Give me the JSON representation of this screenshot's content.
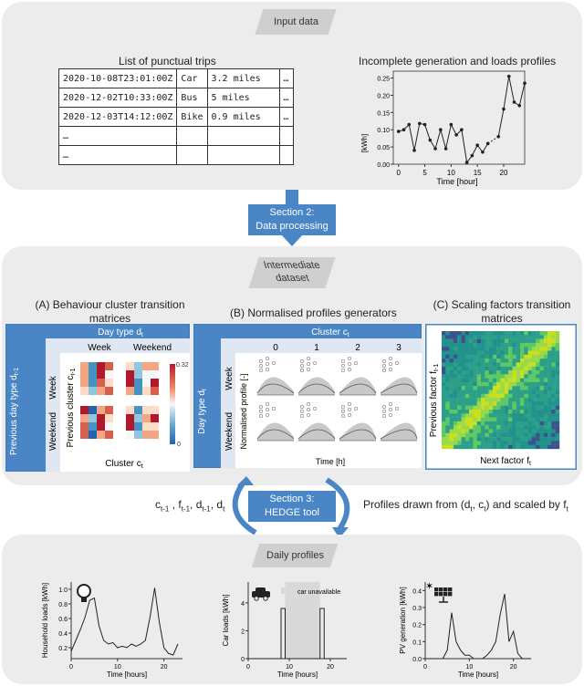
{
  "input": {
    "tag": "Input data",
    "trips_title": "List of punctual trips",
    "trips": [
      [
        "2020-10-08T23:01:00Z",
        "Car",
        "3.2 miles",
        "…"
      ],
      [
        "2020-12-02T10:33:00Z",
        "Bus",
        "5 miles",
        "…"
      ],
      [
        "2020-12-03T14:12:00Z",
        "Bike",
        "0.9 miles",
        "…"
      ],
      [
        "…",
        "",
        "",
        ""
      ],
      [
        "…",
        "",
        "",
        ""
      ]
    ],
    "profile_title": "Incomplete generation and loads profiles",
    "profile_ylabel": "[kWh]",
    "profile_xlabel": "Time [hour]",
    "profile_yticks": [
      "0.00",
      "0.05",
      "0.10",
      "0.15",
      "0.20",
      "0.25"
    ],
    "profile_xticks": [
      "0",
      "5",
      "10",
      "15",
      "20"
    ]
  },
  "section2": {
    "line1": "Section 2:",
    "line2": "Data processing"
  },
  "intermediate": {
    "tag_line1": "Intermediate",
    "tag_line2": "dataset",
    "a_title_1": "(A) Behaviour cluster transition",
    "a_title_2": "matrices",
    "a_daytype": "Day type d",
    "a_daytype_sub": "t",
    "a_week": "Week",
    "a_weekend": "Weekend",
    "a_prev_day": "Previous day type d",
    "a_prev_day_sub": "t-1",
    "a_prev_cluster": "Previous cluster c",
    "a_prev_cluster_sub": "t-1",
    "a_cluster": "Cluster c",
    "a_cluster_sub": "t",
    "a_cbar_max": "0.32",
    "a_cbar_min": "0",
    "b_title": "(B) Normalised profiles generators",
    "b_cluster": "Cluster c",
    "b_cluster_sub": "t",
    "b_cols": [
      "0",
      "1",
      "2",
      "3"
    ],
    "b_daytype": "Day type d",
    "b_daytype_sub": "t",
    "b_week": "Week",
    "b_weekend": "Weekend",
    "b_ylabel": "Normalised profile [-]",
    "b_xlabel": "Time [h]",
    "c_title_1": "(C) Scaling factors transition",
    "c_title_2": "matrices",
    "c_prev": "Previous factor f",
    "c_prev_sub": "t-1",
    "c_next": "Next factor f",
    "c_next_sub": "t"
  },
  "section3": {
    "line1": "Section 3:",
    "line2": "HEDGE tool",
    "inputs": "c",
    "inputs_full": [
      "c",
      "t-1",
      " , f",
      "t-1",
      ", d",
      "t-1",
      ", d",
      "t"
    ],
    "output_pre": "Profiles drawn from (d",
    "output_sub1": "t",
    "output_mid": ", c",
    "output_sub2": "t",
    "output_post": ") and scaled by f",
    "output_sub3": "t"
  },
  "daily": {
    "tag": "Daily profiles",
    "household_ylabel": "Household loads [kWh]",
    "household_yticks": [
      "0.2",
      "0.4",
      "0.6",
      "0.8",
      "1.0"
    ],
    "car_ylabel": "Car loads [kWh]",
    "car_yticks": [
      "0",
      "2",
      "4"
    ],
    "car_legend": "car unavailable",
    "pv_ylabel": "PV generation [kWh]",
    "pv_yticks": [
      "0.0",
      "0.1",
      "0.2",
      "0.3",
      "0.4"
    ],
    "xlabel": "Time [hours]",
    "xticks": [
      "0",
      "10",
      "20"
    ]
  },
  "colors": {
    "accent": "#4a86c5",
    "panel": "#ececec",
    "tag": "#cfcfcf"
  }
}
